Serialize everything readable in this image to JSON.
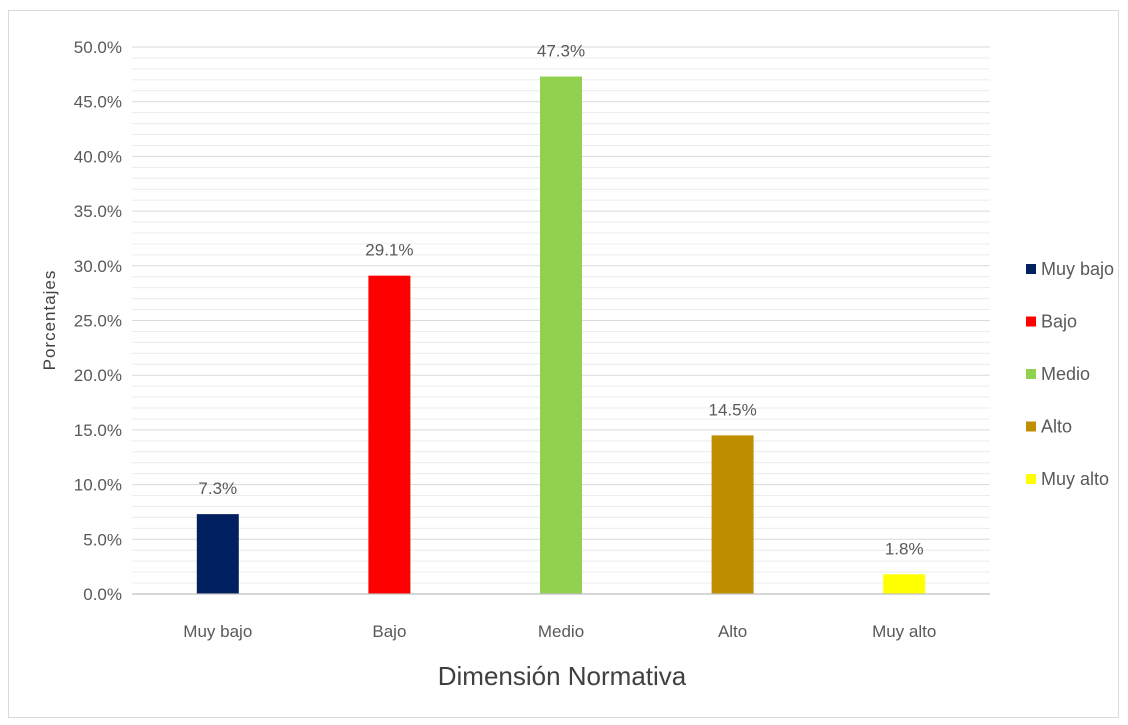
{
  "chart_data": {
    "type": "bar",
    "categories": [
      "Muy bajo",
      "Bajo",
      "Medio",
      "Alto",
      "Muy alto"
    ],
    "values": [
      7.3,
      29.1,
      47.3,
      14.5,
      1.8
    ],
    "data_labels": [
      "7.3%",
      "29.1%",
      "47.3%",
      "14.5%",
      "1.8%"
    ],
    "colors": [
      "#002060",
      "#ff0000",
      "#92d050",
      "#bf8f00",
      "#ffff00"
    ],
    "xlabel": "Dimensión Normativa",
    "ylabel": "Porcentajes",
    "ylim": [
      0,
      50
    ],
    "y_ticks": [
      "0.0%",
      "5.0%",
      "10.0%",
      "15.0%",
      "20.0%",
      "25.0%",
      "30.0%",
      "35.0%",
      "40.0%",
      "45.0%",
      "50.0%"
    ],
    "grid": true,
    "legend": {
      "placement": "right",
      "entries": [
        "Muy bajo",
        "Bajo",
        "Medio",
        "Alto",
        "Muy alto"
      ]
    }
  }
}
